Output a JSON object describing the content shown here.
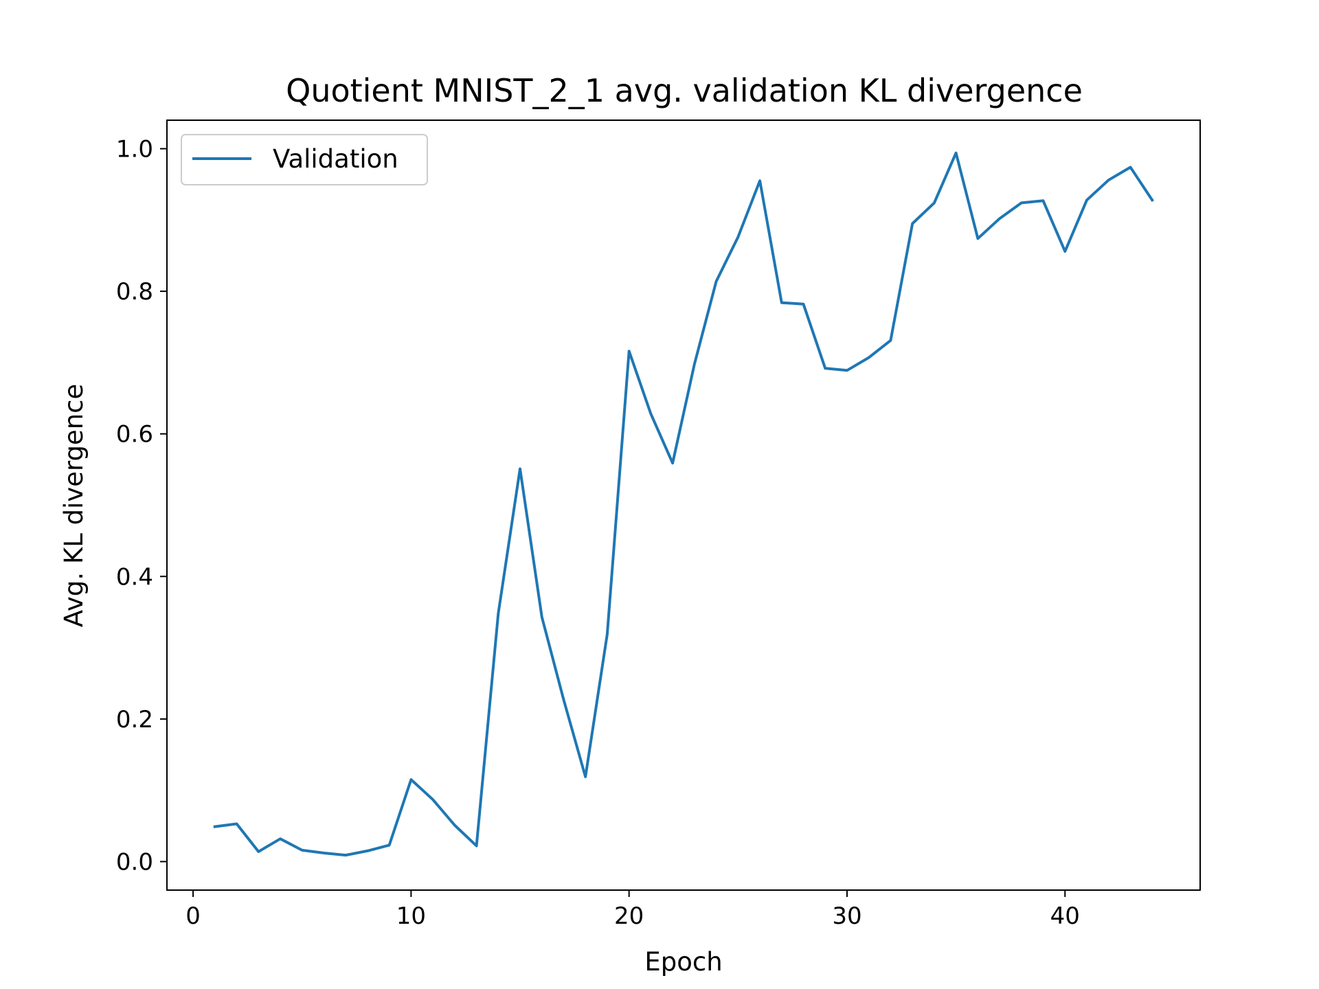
{
  "chart_data": {
    "type": "line",
    "title": "Quotient MNIST_2_1 avg. validation KL divergence",
    "xlabel": "Epoch",
    "ylabel": "Avg. KL divergence",
    "xlim": [
      -1.2,
      46.2
    ],
    "ylim": [
      -0.04,
      1.04
    ],
    "xticks": [
      0,
      10,
      20,
      30,
      40
    ],
    "xtick_labels": [
      "0",
      "10",
      "20",
      "30",
      "40"
    ],
    "yticks": [
      0.0,
      0.2,
      0.4,
      0.6,
      0.8,
      1.0
    ],
    "ytick_labels": [
      "0.0",
      "0.2",
      "0.4",
      "0.6",
      "0.8",
      "1.0"
    ],
    "grid": false,
    "legend_position": "upper-left",
    "series": [
      {
        "name": "Validation",
        "color": "#1f77b4",
        "x": [
          1,
          2,
          3,
          4,
          5,
          6,
          7,
          8,
          9,
          10,
          11,
          12,
          13,
          14,
          15,
          16,
          17,
          18,
          19,
          20,
          21,
          22,
          23,
          24,
          25,
          26,
          27,
          28,
          29,
          30,
          31,
          32,
          33,
          34,
          35,
          36,
          37,
          38,
          39,
          40,
          41,
          42,
          43,
          44
        ],
        "y": [
          0.049,
          0.053,
          0.014,
          0.032,
          0.016,
          0.012,
          0.009,
          0.015,
          0.023,
          0.115,
          0.087,
          0.051,
          0.022,
          0.348,
          0.551,
          0.343,
          0.227,
          0.119,
          0.319,
          0.716,
          0.628,
          0.559,
          0.698,
          0.814,
          0.876,
          0.955,
          0.784,
          0.782,
          0.692,
          0.689,
          0.707,
          0.731,
          0.895,
          0.924,
          0.994,
          0.874,
          0.902,
          0.924,
          0.927,
          0.856,
          0.928,
          0.956,
          0.974,
          0.928
        ]
      }
    ]
  }
}
